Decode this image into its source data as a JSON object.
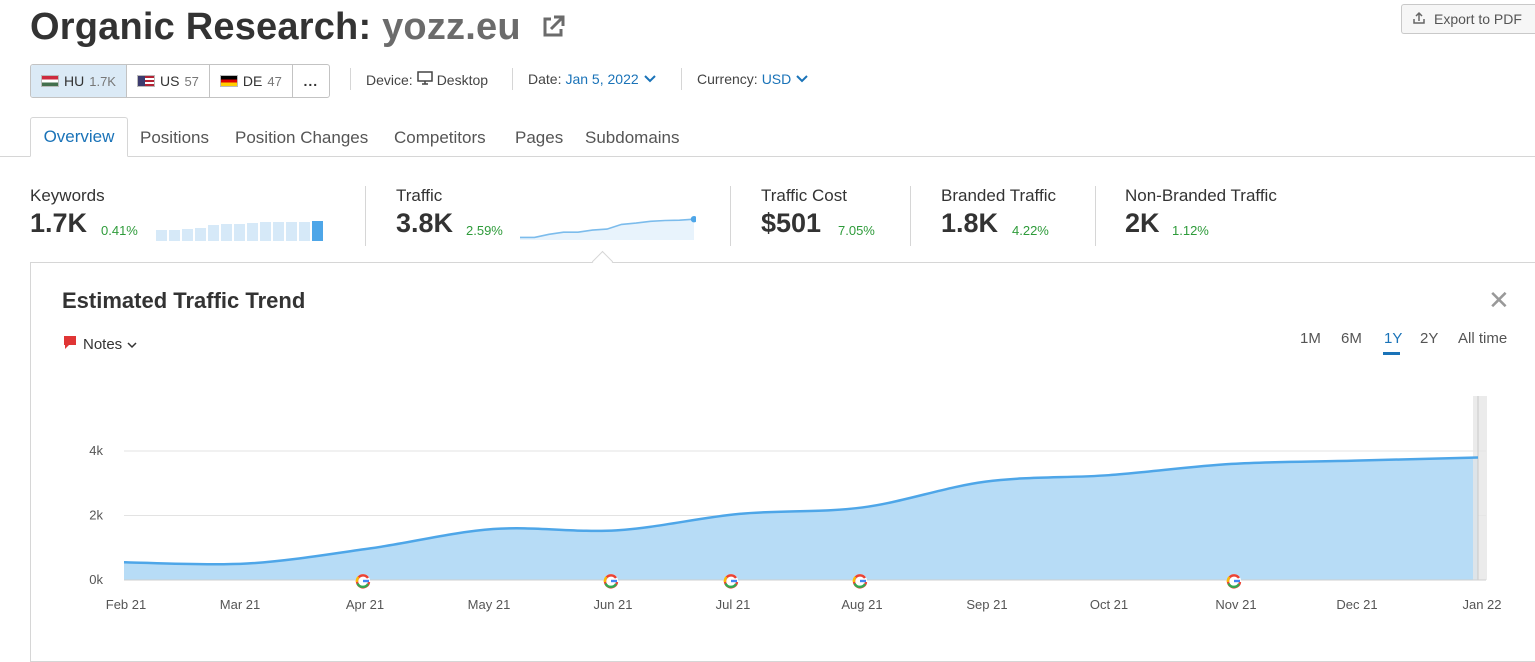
{
  "header": {
    "title_prefix": "Organic Research:",
    "domain": "yozz.eu",
    "export_label": "Export to PDF"
  },
  "databases": [
    {
      "code": "HU",
      "count": "1.7K",
      "active": true
    },
    {
      "code": "US",
      "count": "57",
      "active": false
    },
    {
      "code": "DE",
      "count": "47",
      "active": false
    }
  ],
  "more_label": "...",
  "filters": {
    "device_label": "Device:",
    "device_value": "Desktop",
    "date_label": "Date:",
    "date_value": "Jan 5, 2022",
    "currency_label": "Currency:",
    "currency_value": "USD"
  },
  "tabs": [
    "Overview",
    "Positions",
    "Position Changes",
    "Competitors",
    "Pages",
    "Subdomains"
  ],
  "metrics": {
    "keywords": {
      "label": "Keywords",
      "value": "1.7K",
      "change": "0.41%"
    },
    "traffic": {
      "label": "Traffic",
      "value": "3.8K",
      "change": "2.59%"
    },
    "traffic_cost": {
      "label": "Traffic Cost",
      "value": "$501",
      "change": "7.05%"
    },
    "branded": {
      "label": "Branded Traffic",
      "value": "1.8K",
      "change": "4.22%"
    },
    "non_branded": {
      "label": "Non-Branded Traffic",
      "value": "2K",
      "change": "1.12%"
    }
  },
  "keyword_trend": [
    0.45,
    0.45,
    0.5,
    0.55,
    0.65,
    0.72,
    0.72,
    0.75,
    0.8,
    0.8,
    0.8,
    0.8,
    0.85
  ],
  "traffic_trend": [
    0.1,
    0.1,
    0.22,
    0.3,
    0.3,
    0.38,
    0.42,
    0.6,
    0.65,
    0.72,
    0.75,
    0.76,
    0.8
  ],
  "chart": {
    "title": "Estimated Traffic Trend",
    "notes_label": "Notes",
    "ranges": [
      "1M",
      "6M",
      "1Y",
      "2Y",
      "All time"
    ],
    "active_range": "1Y",
    "close_label": "✕"
  },
  "chart_data": {
    "type": "area",
    "x": [
      "Feb 21",
      "Mar 21",
      "Apr 21",
      "May 21",
      "Jun 21",
      "Jul 21",
      "Aug 21",
      "Sep 21",
      "Oct 21",
      "Nov 21",
      "Dec 21",
      "Jan 22"
    ],
    "values": [
      550,
      510,
      980,
      1580,
      1540,
      2050,
      2250,
      3050,
      3250,
      3600,
      3700,
      3800
    ],
    "yticks": [
      "0k",
      "2k",
      "4k"
    ],
    "ylim": [
      0,
      4000
    ],
    "google_update_months": [
      "Apr 21",
      "Jun 21",
      "Jul 21",
      "Aug 21",
      "Nov 21"
    ],
    "color": "#4ea6e8",
    "fill": "#b7dcf6"
  },
  "colors": {
    "accent": "#1a73b8",
    "positive": "#2e9b3a",
    "notes_icon": "#e03535"
  }
}
